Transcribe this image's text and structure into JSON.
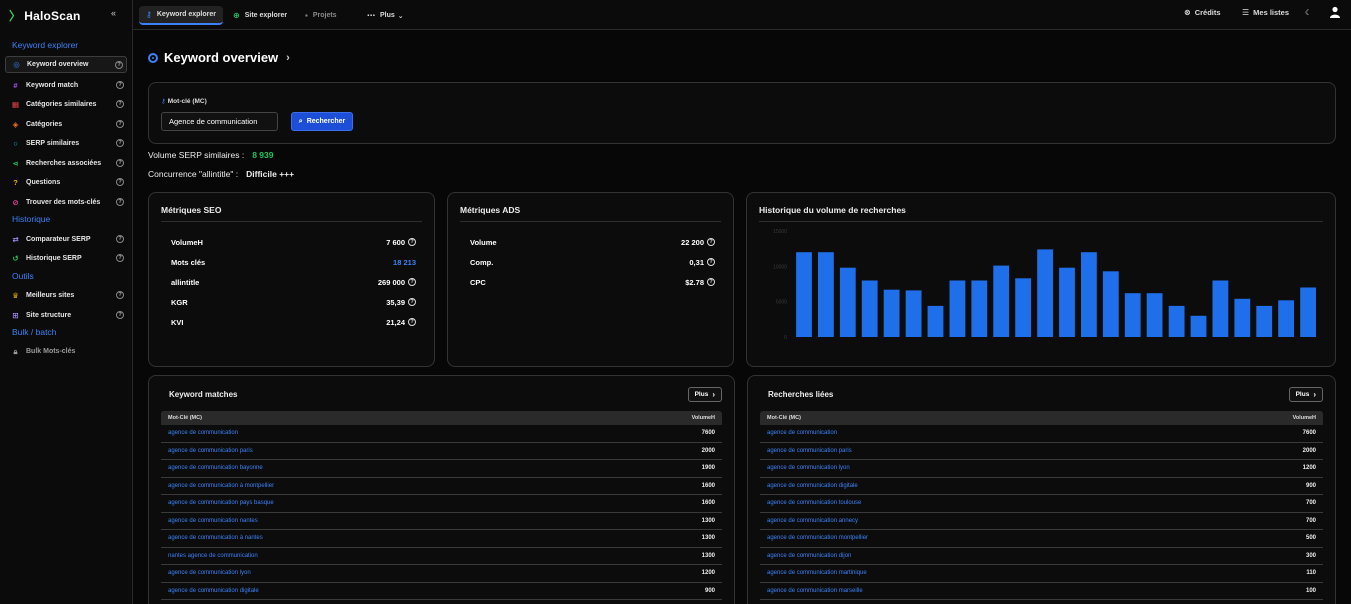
{
  "app": {
    "name": "HaloScan",
    "collapse_glyph": "«"
  },
  "sidebar": {
    "sections": [
      {
        "title": "Keyword explorer"
      },
      {
        "title": "Historique"
      },
      {
        "title": "Outils"
      },
      {
        "title": "Bulk / batch"
      }
    ],
    "items": [
      {
        "label": "Keyword overview",
        "icon": "target-icon",
        "active": true
      },
      {
        "label": "Keyword match",
        "icon": "hash-icon"
      },
      {
        "label": "Catégories similaires",
        "icon": "grid-icon"
      },
      {
        "label": "Catégories",
        "icon": "layers-icon"
      },
      {
        "label": "SERP similaires",
        "icon": "search-icon"
      },
      {
        "label": "Recherches associées",
        "icon": "share-icon"
      },
      {
        "label": "Questions",
        "icon": "question-icon"
      },
      {
        "label": "Trouver des mots-clés",
        "icon": "compass-icon"
      },
      {
        "label": "Comparateur SERP",
        "icon": "compare-icon"
      },
      {
        "label": "Historique SERP",
        "icon": "history-icon"
      },
      {
        "label": "Meilleurs sites",
        "icon": "trophy-icon"
      },
      {
        "label": "Site structure",
        "icon": "structure-icon"
      },
      {
        "label": "Bulk Mots-clés",
        "icon": "lock-icon"
      }
    ]
  },
  "topbar": {
    "tabs": [
      {
        "label": "Keyword explorer",
        "icon": "key-icon"
      },
      {
        "label": "Site explorer",
        "icon": "globe-icon"
      },
      {
        "label": "Projets",
        "icon": "lock-icon"
      },
      {
        "label": "Plus",
        "icon": "dots-icon"
      }
    ],
    "credits_label": "Crédits",
    "lists_label": "Mes listes"
  },
  "page": {
    "title": "Keyword overview",
    "mc_label": "Mot-clé (MC)",
    "mc_value": "Agence de communication",
    "search_button": "Rechercher",
    "serp_volume_label": "Volume SERP similaires :",
    "serp_volume_value": "8 939",
    "competition_label": "Concurrence \"allintitle\" :",
    "competition_value": "Difficile +++"
  },
  "seo": {
    "title": "Métriques SEO",
    "rows": [
      {
        "label": "VolumeH",
        "value": "7 600"
      },
      {
        "label": "Mots clés",
        "value": "18 213"
      },
      {
        "label": "allintitle",
        "value": "269 000"
      },
      {
        "label": "KGR",
        "value": "35,39"
      },
      {
        "label": "KVI",
        "value": "21,24"
      }
    ]
  },
  "ads": {
    "title": "Métriques ADS",
    "rows": [
      {
        "label": "Volume",
        "value": "22 200"
      },
      {
        "label": "Comp.",
        "value": "0,31"
      },
      {
        "label": "CPC",
        "value": "$2.78"
      }
    ]
  },
  "history": {
    "title": "Historique du volume de recherches"
  },
  "chart_data": {
    "type": "bar",
    "title": "Historique du volume de recherches",
    "ylim": [
      0,
      15000
    ],
    "yticks": [
      0,
      5000,
      10000,
      15000
    ],
    "grid": false,
    "color": "#1f6feb",
    "values": [
      12000,
      12000,
      9800,
      8000,
      6700,
      6600,
      4400,
      8000,
      8000,
      10100,
      8300,
      12400,
      9800,
      12000,
      9300,
      6200,
      6200,
      4400,
      3000,
      8000,
      5400,
      4400,
      5200,
      7000
    ]
  },
  "keyword_matches": {
    "title": "Keyword matches",
    "plus_label": "Plus",
    "col_kw": "Mot-Clé (MC)",
    "col_vol": "VolumeH",
    "rows": [
      {
        "kw": "agence de communication",
        "vol": "7600"
      },
      {
        "kw": "agence de communication paris",
        "vol": "2000"
      },
      {
        "kw": "agence de communication bayonne",
        "vol": "1900"
      },
      {
        "kw": "agence de communication à montpellier",
        "vol": "1600"
      },
      {
        "kw": "agence de communication pays basque",
        "vol": "1600"
      },
      {
        "kw": "agence de communication nantes",
        "vol": "1300"
      },
      {
        "kw": "agence de communication à nantes",
        "vol": "1300"
      },
      {
        "kw": "nantes agence de communication",
        "vol": "1300"
      },
      {
        "kw": "agence de communication lyon",
        "vol": "1200"
      },
      {
        "kw": "agence de communication digitale",
        "vol": "900"
      }
    ]
  },
  "related": {
    "title": "Recherches liées",
    "plus_label": "Plus",
    "col_kw": "Mot-Clé (MC)",
    "col_vol": "VolumeH",
    "rows": [
      {
        "kw": "agence de communication",
        "vol": "7600"
      },
      {
        "kw": "agence de communication paris",
        "vol": "2000"
      },
      {
        "kw": "agence de communication lyon",
        "vol": "1200"
      },
      {
        "kw": "agence de communication digitale",
        "vol": "900"
      },
      {
        "kw": "agence de communication toulouse",
        "vol": "700"
      },
      {
        "kw": "agence de communication annecy",
        "vol": "700"
      },
      {
        "kw": "agence de communication montpellier",
        "vol": "500"
      },
      {
        "kw": "agence de communication dijon",
        "vol": "300"
      },
      {
        "kw": "agence de communication martinique",
        "vol": "110"
      },
      {
        "kw": "agence de communication marseille",
        "vol": "100"
      }
    ]
  }
}
